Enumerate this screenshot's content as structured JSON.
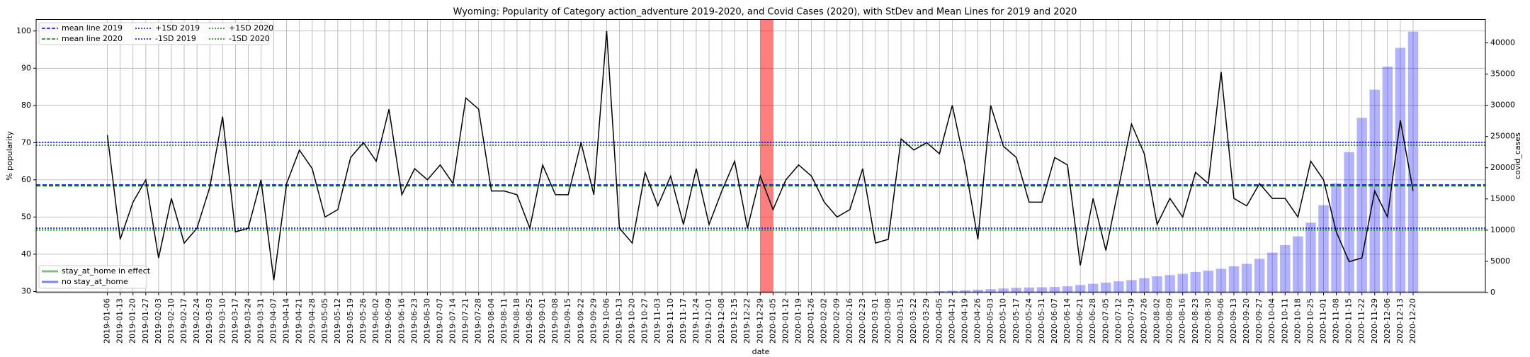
{
  "chart_data": {
    "type": "line",
    "title": "Wyoming: Popularity of Category action_adventure 2019-2020, and Covid Cases (2020), with StDev and Mean Lines for 2019 and 2020",
    "xlabel": "date",
    "ylabel": "% popularity",
    "y2label": "covid_cases",
    "categories": [
      "2019-01-06",
      "2019-01-13",
      "2019-01-20",
      "2019-01-27",
      "2019-02-03",
      "2019-02-10",
      "2019-02-17",
      "2019-02-24",
      "2019-03-03",
      "2019-03-10",
      "2019-03-17",
      "2019-03-24",
      "2019-03-31",
      "2019-04-07",
      "2019-04-14",
      "2019-04-21",
      "2019-04-28",
      "2019-05-05",
      "2019-05-12",
      "2019-05-19",
      "2019-05-26",
      "2019-06-02",
      "2019-06-09",
      "2019-06-16",
      "2019-06-23",
      "2019-06-30",
      "2019-07-07",
      "2019-07-14",
      "2019-07-21",
      "2019-07-28",
      "2019-08-04",
      "2019-08-11",
      "2019-08-18",
      "2019-08-25",
      "2019-09-01",
      "2019-09-08",
      "2019-09-15",
      "2019-09-22",
      "2019-09-29",
      "2019-10-06",
      "2019-10-13",
      "2019-10-20",
      "2019-10-27",
      "2019-11-03",
      "2019-11-10",
      "2019-11-17",
      "2019-11-24",
      "2019-12-01",
      "2019-12-08",
      "2019-12-15",
      "2019-12-22",
      "2019-12-29",
      "2020-01-05",
      "2020-01-12",
      "2020-01-19",
      "2020-01-26",
      "2020-02-02",
      "2020-02-09",
      "2020-02-16",
      "2020-02-23",
      "2020-03-01",
      "2020-03-08",
      "2020-03-15",
      "2020-03-22",
      "2020-03-29",
      "2020-04-05",
      "2020-04-12",
      "2020-04-19",
      "2020-04-26",
      "2020-05-03",
      "2020-05-10",
      "2020-05-17",
      "2020-05-24",
      "2020-05-31",
      "2020-06-07",
      "2020-06-14",
      "2020-06-21",
      "2020-06-28",
      "2020-07-05",
      "2020-07-12",
      "2020-07-19",
      "2020-07-26",
      "2020-08-02",
      "2020-08-09",
      "2020-08-16",
      "2020-08-23",
      "2020-08-30",
      "2020-09-06",
      "2020-09-13",
      "2020-09-20",
      "2020-09-27",
      "2020-10-04",
      "2020-10-11",
      "2020-10-18",
      "2020-10-25",
      "2020-11-01",
      "2020-11-08",
      "2020-11-15",
      "2020-11-22",
      "2020-11-29",
      "2020-12-06",
      "2020-12-13",
      "2020-12-20"
    ],
    "series": [
      {
        "color": "#000000",
        "values": [
          72,
          44,
          54,
          60,
          39,
          55,
          43,
          47,
          58,
          77,
          46,
          47,
          60,
          33,
          59,
          68,
          63,
          50,
          52,
          66,
          70,
          65,
          79,
          56,
          63,
          60,
          64,
          59,
          82,
          79,
          57,
          57,
          56,
          47,
          64,
          56,
          56,
          70,
          56,
          100,
          47,
          43,
          62,
          53,
          61,
          48,
          63,
          48,
          57,
          65,
          47,
          61,
          52,
          60,
          64,
          61,
          54,
          50,
          52,
          63,
          43,
          44,
          71,
          68,
          70,
          67,
          80,
          64,
          44,
          80,
          69,
          66,
          54,
          54,
          66,
          64,
          37,
          55,
          41,
          58,
          75,
          67,
          48,
          55,
          50,
          62,
          59,
          89,
          55,
          53,
          59,
          55,
          55,
          50,
          65,
          60,
          46,
          38,
          39,
          57,
          50,
          76,
          57
        ]
      },
      {
        "type": "bar",
        "axis": "y2",
        "color": "#0000ff",
        "values": [
          null,
          null,
          null,
          null,
          null,
          null,
          null,
          null,
          null,
          null,
          null,
          null,
          null,
          null,
          null,
          null,
          null,
          null,
          null,
          null,
          null,
          null,
          null,
          null,
          null,
          null,
          null,
          null,
          null,
          null,
          null,
          null,
          null,
          null,
          null,
          null,
          null,
          null,
          null,
          null,
          null,
          null,
          null,
          null,
          null,
          null,
          null,
          null,
          null,
          null,
          null,
          null,
          null,
          null,
          null,
          null,
          null,
          null,
          null,
          null,
          null,
          null,
          null,
          30,
          100,
          200,
          280,
          350,
          450,
          550,
          650,
          750,
          800,
          850,
          900,
          1000,
          1200,
          1400,
          1600,
          1800,
          2000,
          2300,
          2600,
          2800,
          3000,
          3300,
          3500,
          3800,
          4200,
          4600,
          5400,
          6400,
          7600,
          9000,
          11200,
          14000,
          17500,
          22500,
          28000,
          32500,
          36200,
          39200,
          41800
        ]
      }
    ],
    "reference_lines": [
      {
        "name": "mean line 2019",
        "value": 58.6,
        "color": "#0000ff",
        "style": "dashed"
      },
      {
        "name": "mean line 2020",
        "value": 58.4,
        "color": "#008000",
        "style": "dashed"
      },
      {
        "name": "+1SD 2019",
        "value": 70.1,
        "color": "#0000ff",
        "style": "dotted"
      },
      {
        "name": "-1SD 2019",
        "value": 47.0,
        "color": "#0000ff",
        "style": "dotted"
      },
      {
        "name": "+1SD 2020",
        "value": 69.3,
        "color": "#008000",
        "style": "dotted"
      },
      {
        "name": "-1SD 2020",
        "value": 46.5,
        "color": "#008000",
        "style": "dotted"
      }
    ],
    "bar_legend": [
      {
        "name": "stay_at_home in effect",
        "color": "#008000"
      },
      {
        "name": "no stay_at_home",
        "color": "#0000ff"
      }
    ],
    "highlight_span": [
      "2019-12-29",
      "2020-01-05"
    ],
    "highlight_color": "#ff0000",
    "ylim": [
      29.7,
      103.1
    ],
    "yticks": [
      30,
      40,
      50,
      60,
      70,
      80,
      90,
      100
    ],
    "y2lim": [
      0,
      43750
    ],
    "y2ticks": [
      0,
      5000,
      10000,
      15000,
      20000,
      25000,
      30000,
      35000,
      40000
    ],
    "grid": true
  }
}
